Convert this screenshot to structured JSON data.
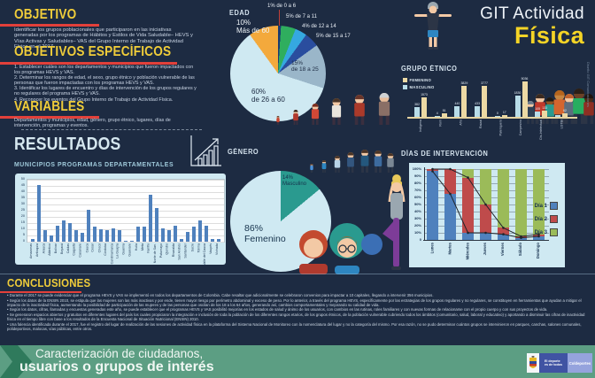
{
  "header": {
    "title_line1": "GIT Actividad",
    "title_line2": "Física"
  },
  "sections": {
    "objetivo": {
      "heading": "OBJETIVO",
      "body": "Identificar los grupos poblacionales que participaron en las iniciativas generadas por los programas de Hábitos y Estilos de Vida Saludable– HEVS y Vías Activas y Saludables– VAS del Grupo Interno de Trabajo de Actividad Física en el 2017."
    },
    "objetivos_especificos": {
      "heading": "OBJETIVOS ESPECÍFICOS",
      "items": [
        "1. Establecer cuáles son los departamentos y municipios que fueron impactados con los programas HEVS y VAS.",
        "2. Determinar los rangos de edad, el sexo, grupo étnico y población vulnerable de las personas que fueron impactadas con los programas HEVS y VAS.",
        "3. Identificar los lugares de encuentro y días de intervención de los grupos regulares y no regulares del programa HEVS y VAS.",
        "4. Reconocer los eventos del Grupo Interno de Trabajo de Actividad Física."
      ]
    },
    "variables": {
      "heading": "VARIABLES",
      "body": "Departamentos y municipios, edad, género, grupo étnico, lugares, días de intervención, programas y eventos."
    },
    "resultados": {
      "heading": "RESULTADOS"
    },
    "conclusiones": {
      "heading": "CONCLUSIONES",
      "bullets": [
        "• Durante el 2017 se puede evidenciar que el programa HEVS y VAS se implementó en todos los departamentos de Colombia. Cabe resaltar que adicionalmente se celebraron convenios para impactar a 10 capitales, llegando a intervenir 356 municipios.",
        "• Según los datos de la ENSIN 2010, se estipula que las mujeres son las más inactivas y por ende, tienen mayor riesgo por perímetro abdominal y exceso de peso. Por lo anterior, a través del programa HEVS, específicamente por las estrategias de los grupos regulares y no regulares, se constituyen en herramientas que ayudan a mitigar el impacto de la inactividad física, aumentando la posibilidad de participación de las mujeres y de las personas que oscilan de los 18 a los 64 años, generando así, cambios comportamentales y mejorando su calidad de vida.",
        "• Según los datos, cifras, llamadas y encuestas generadas este año, se puede establecer que el programas HEVS y VAS posibilitó mejorías en los estados de salud y ánimo de los usuarios, con cambios en las rutinas, roles familiares y con nuevas formas de relacionarse con el propio cuerpo y con sus proyectos de vida.",
        "• Se generaron espacios abiertos y gratuitos en diferentes lugares del país los cuales propiciaron la integración e inclusión de toda la población de los diferentes rangos etarios, de los grupos étnicos, de la población vulnerable cubriendo todos los ámbitos (comunitario, salud, laboral y educativo) y aportando a disminuir las cifras de inactividad física en el tiempo libre con base a los resultados de la Encuesta Nacional de Situación Nutricional (ENSIN) 2010.",
        "• Una falencia identificada durante el 2017, fue el registro del lugar de realización de las sesiones de actividad física en la plataforma del Sistema Nacional de Monitoreo con la nomenclatura del lugar y no la categoría del mismo. Por esa razón, no se pudo determinar cuántos grupos se intervinieron en parques, canchas, salones comunales, polideportivos, malocas, vías públicas, entre otros."
      ]
    }
  },
  "footer": {
    "line1": "Caracterización de ciudadanos,",
    "line2": "usuarios o grupos de interés",
    "brands": [
      "El deporte\nes de todos",
      "Coldeportes"
    ]
  },
  "credit": "Diseño GIT Comunicaciones",
  "icons": {
    "exercising-man-icon": "svg-shape",
    "growth-chart-icon": "svg-shape",
    "yoga-woman-icon": "svg-shape",
    "people-figures-icon": "svg-shape",
    "coat-of-arms-icon": "svg-shape"
  },
  "colors": {
    "background": "#1d2b42",
    "accent_yellow": "#f0cd3a",
    "accent_red": "#e2403a",
    "panel_blue": "#cfe9f2",
    "footer_green": "#5c9e83"
  },
  "chart_data": [
    {
      "id": "municipios",
      "type": "bar",
      "title": "MUNICIPIOS PROGRAMAS DEPARTAMENTALES",
      "ylim": [
        0,
        50
      ],
      "yticks": [
        0,
        5,
        10,
        15,
        20,
        25,
        30,
        35,
        40,
        45,
        50
      ],
      "bar_color": "#4f81bd",
      "categories": [
        "Amazonas",
        "Antioquia",
        "Arauca",
        "Atlántico",
        "Bolívar",
        "Boyacá",
        "Caldas",
        "Caquetá",
        "Casanare",
        "Cauca",
        "Cesar",
        "Chocó",
        "Córdoba",
        "Cundinamarca",
        "La Guajira",
        "Guainía",
        "Guaviare",
        "Huila",
        "Meta",
        "Nariño",
        "Norte de San.",
        "Putumayo",
        "Quindío",
        "Risaralda",
        "San Andrés",
        "Santander",
        "Sucre",
        "Tolima",
        "Valle del Cauca",
        "Vaupés",
        "Vichada"
      ],
      "values": [
        2,
        46,
        9,
        5,
        13,
        17,
        15,
        9,
        7,
        26,
        12,
        10,
        9,
        11,
        9,
        1,
        1,
        12,
        12,
        38,
        27,
        11,
        9,
        13,
        2,
        8,
        12,
        17,
        13,
        2,
        2
      ]
    },
    {
      "id": "edad",
      "type": "pie",
      "title": "EDAD",
      "slices": [
        {
          "label": "de 0 a 6",
          "pct": 1,
          "color": "#1b3a70",
          "display": "1% de 0 a 6"
        },
        {
          "label": "de 7 a 11",
          "pct": 5,
          "color": "#2fae5e",
          "display": "5% de 7 a 11"
        },
        {
          "label": "de 12 a 14",
          "pct": 4,
          "color": "#35a8e0",
          "display": "4% de 12 a 14"
        },
        {
          "label": "de 15 a 17",
          "pct": 5,
          "color": "#2a4d9e",
          "display": "5% de 15 a 17"
        },
        {
          "label": "de 18 a 25",
          "pct": 15,
          "color": "#9ab6c9",
          "display": "15%\nde 18 a 25"
        },
        {
          "label": "de 26 a 60",
          "pct": 60,
          "color": "#cfe9f2",
          "display": "60%\nde 26 a 60"
        },
        {
          "label": "Más de 60",
          "pct": 10,
          "color": "#f3a93c",
          "display": "10%\nMás de 60"
        }
      ]
    },
    {
      "id": "genero",
      "type": "pie",
      "title": "GÉNERO",
      "slices": [
        {
          "label": "Masculino",
          "pct": 14,
          "color": "#2a9a8f",
          "display": "14%\nMasculino"
        },
        {
          "label": "Femenino",
          "pct": 86,
          "color": "#cfe9f2",
          "display": "86%\nFemenino"
        }
      ]
    },
    {
      "id": "grupo_etnico",
      "type": "bar",
      "title": "GRUPO ÉTNICO",
      "legend": [
        {
          "label": "FEMENINO",
          "color": "#ecd9a4"
        },
        {
          "label": "MASCULINO",
          "color": "#b8dce8"
        }
      ],
      "categories": [
        "Indígena",
        "Rom",
        "Afro",
        "Raizal",
        "Palenquero",
        "Campesino",
        "Dis-Intelectual",
        "LGTBI"
      ],
      "series": [
        {
          "name": "MASCULINO",
          "color": "#b8dce8",
          "values": [
            382,
            4,
            440,
            433,
            0,
            1830,
            105,
            null
          ]
        },
        {
          "name": "FEMENINO",
          "color": "#ecd9a4",
          "values": [
            1573,
            51,
            3829,
            3777,
            17,
            5036,
            133,
            62
          ]
        }
      ]
    },
    {
      "id": "dias",
      "type": "stacked-bar-line",
      "title": "DÍAS DE INTERVENCIÓN",
      "categories": [
        "Lunes",
        "Martes",
        "Miércoles",
        "Jueves",
        "Viernes",
        "Sábado",
        "Domingo"
      ],
      "yticks": [
        "100%",
        "90%",
        "80%",
        "70%",
        "60%",
        "50%",
        "40%",
        "30%",
        "20%",
        "10%",
        "0"
      ],
      "legend": [
        {
          "label": "Día 1",
          "color": "#4f81bd"
        },
        {
          "label": "Día 2",
          "color": "#bf4b4b"
        },
        {
          "label": "Día 3",
          "color": "#9bbb59"
        }
      ],
      "series": [
        {
          "name": "Día 1",
          "color": "#4f81bd",
          "values": [
            97,
            65,
            10,
            10,
            8,
            3,
            5
          ]
        },
        {
          "name": "Día 2",
          "color": "#bf4b4b",
          "values": [
            3,
            35,
            78,
            40,
            9,
            2,
            3
          ]
        },
        {
          "name": "Día 3",
          "color": "#9bbb59",
          "values": [
            0,
            0,
            12,
            50,
            83,
            95,
            92
          ]
        }
      ]
    }
  ]
}
